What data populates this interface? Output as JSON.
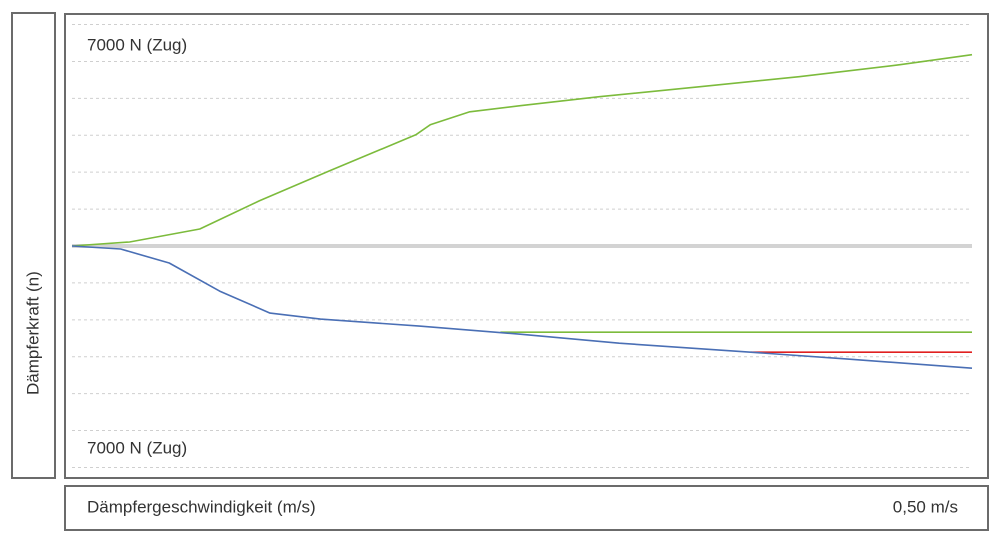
{
  "chart_data": {
    "type": "line",
    "y_label": "Dämpferkraft (n)",
    "x_label": "Dämpfergeschwindigkeit (m/s)",
    "annotations": [
      "7000 N (Zug)",
      "7000 N (Zug)"
    ],
    "xlim": [
      0,
      0.5
    ],
    "xticks": [
      {
        "value": 0.5,
        "label": "0,50 m/s"
      }
    ],
    "ylim": [
      -8800,
      8800
    ],
    "yticks": [
      -8400,
      -7000,
      -5600,
      -4200,
      -2800,
      -1400,
      0,
      1400,
      2800,
      4200,
      5600,
      7000,
      8400
    ],
    "grid": true,
    "series": [
      {
        "color": "#7cbb3c",
        "x": [
          0,
          0.032,
          0.071,
          0.104,
          0.143,
          0.191,
          0.199,
          0.221,
          0.249,
          0.293,
          0.349,
          0.404,
          0.46,
          0.5
        ],
        "values": [
          0,
          152,
          646,
          1710,
          2850,
          4218,
          4598,
          5092,
          5320,
          5662,
          6042,
          6422,
          6878,
          7258
        ]
      },
      {
        "color": "#7cbb3c",
        "x": [
          0.238,
          0.5
        ],
        "values": [
          -3268,
          -3268
        ]
      },
      {
        "color": "#e02020",
        "x": [
          0.377,
          0.5
        ],
        "values": [
          -4028,
          -4028
        ]
      },
      {
        "color": "#4a6fb5",
        "x": [
          0,
          0.027,
          0.054,
          0.082,
          0.11,
          0.138,
          0.193,
          0.249,
          0.304,
          0.377,
          0.432,
          0.5
        ],
        "values": [
          0,
          -114,
          -646,
          -1710,
          -2546,
          -2774,
          -3040,
          -3344,
          -3686,
          -4028,
          -4294,
          -4636
        ]
      }
    ]
  }
}
